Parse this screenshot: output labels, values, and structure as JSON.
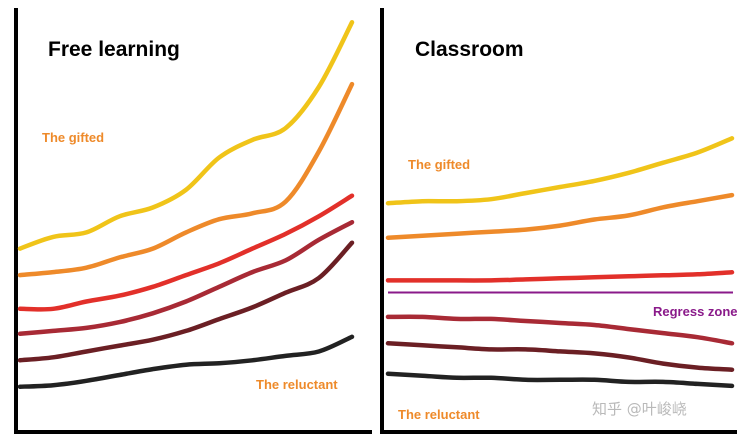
{
  "chart_data": [
    {
      "type": "line",
      "title": "Free learning",
      "xlabel": "",
      "ylabel": "",
      "grid": false,
      "colors": [
        "#f0c419",
        "#ee8a2a",
        "#e2302a",
        "#a82a35",
        "#6b1f24",
        "#222222"
      ],
      "annotations": {
        "top_series": "The gifted",
        "bottom_series": "The reluctant"
      },
      "x": [
        0,
        1,
        2,
        3,
        4,
        5,
        6,
        7,
        8,
        9,
        10
      ],
      "series": [
        {
          "values": [
            0.46,
            0.54,
            0.57,
            0.68,
            0.74,
            0.86,
            1.08,
            1.2,
            1.28,
            1.56,
            2.0
          ]
        },
        {
          "values": [
            0.28,
            0.3,
            0.33,
            0.4,
            0.46,
            0.57,
            0.66,
            0.7,
            0.78,
            1.12,
            1.58
          ]
        },
        {
          "values": [
            0.05,
            0.05,
            0.1,
            0.14,
            0.2,
            0.28,
            0.36,
            0.46,
            0.56,
            0.68,
            0.82
          ]
        },
        {
          "values": [
            -0.12,
            -0.1,
            -0.08,
            -0.04,
            0.02,
            0.1,
            0.2,
            0.3,
            0.38,
            0.52,
            0.64
          ]
        },
        {
          "values": [
            -0.3,
            -0.28,
            -0.24,
            -0.2,
            -0.16,
            -0.1,
            -0.02,
            0.06,
            0.16,
            0.26,
            0.5
          ]
        },
        {
          "values": [
            -0.48,
            -0.47,
            -0.44,
            -0.4,
            -0.36,
            -0.33,
            -0.32,
            -0.3,
            -0.27,
            -0.24,
            -0.14
          ]
        }
      ],
      "ylim": [
        -0.55,
        2.05
      ]
    },
    {
      "type": "line",
      "title": "Classroom",
      "xlabel": "",
      "ylabel": "",
      "grid": false,
      "colors": [
        "#f0c419",
        "#ee8a2a",
        "#e2302a",
        "#a82a35",
        "#6b1f24",
        "#222222"
      ],
      "annotations": {
        "top_series": "The gifted",
        "bottom_series": "The reluctant",
        "threshold_label": "Regress zone",
        "threshold_value": 0.0,
        "threshold_color": "#8a1a8a"
      },
      "x": [
        0,
        1,
        2,
        3,
        4,
        5,
        6,
        7,
        8,
        9,
        10
      ],
      "series": [
        {
          "values": [
            0.88,
            0.9,
            0.9,
            0.92,
            0.98,
            1.04,
            1.1,
            1.18,
            1.28,
            1.38,
            1.52
          ]
        },
        {
          "values": [
            0.54,
            0.56,
            0.58,
            0.6,
            0.62,
            0.66,
            0.72,
            0.76,
            0.84,
            0.9,
            0.96
          ]
        },
        {
          "values": [
            0.12,
            0.12,
            0.12,
            0.12,
            0.13,
            0.14,
            0.15,
            0.16,
            0.17,
            0.18,
            0.2
          ]
        },
        {
          "values": [
            -0.24,
            -0.24,
            -0.26,
            -0.26,
            -0.28,
            -0.3,
            -0.32,
            -0.36,
            -0.4,
            -0.44,
            -0.5
          ]
        },
        {
          "values": [
            -0.5,
            -0.52,
            -0.54,
            -0.56,
            -0.56,
            -0.58,
            -0.6,
            -0.64,
            -0.7,
            -0.74,
            -0.76
          ]
        },
        {
          "values": [
            -0.8,
            -0.82,
            -0.84,
            -0.84,
            -0.86,
            -0.86,
            -0.86,
            -0.88,
            -0.88,
            -0.9,
            -0.92
          ]
        }
      ],
      "ylim": [
        -0.98,
        1.72
      ]
    }
  ],
  "watermark": "知乎 @叶峻峣",
  "label_colors": {
    "top_series": "#ee8a2a",
    "bottom_series": "#ee8a2a",
    "threshold": "#8a1a8a"
  }
}
